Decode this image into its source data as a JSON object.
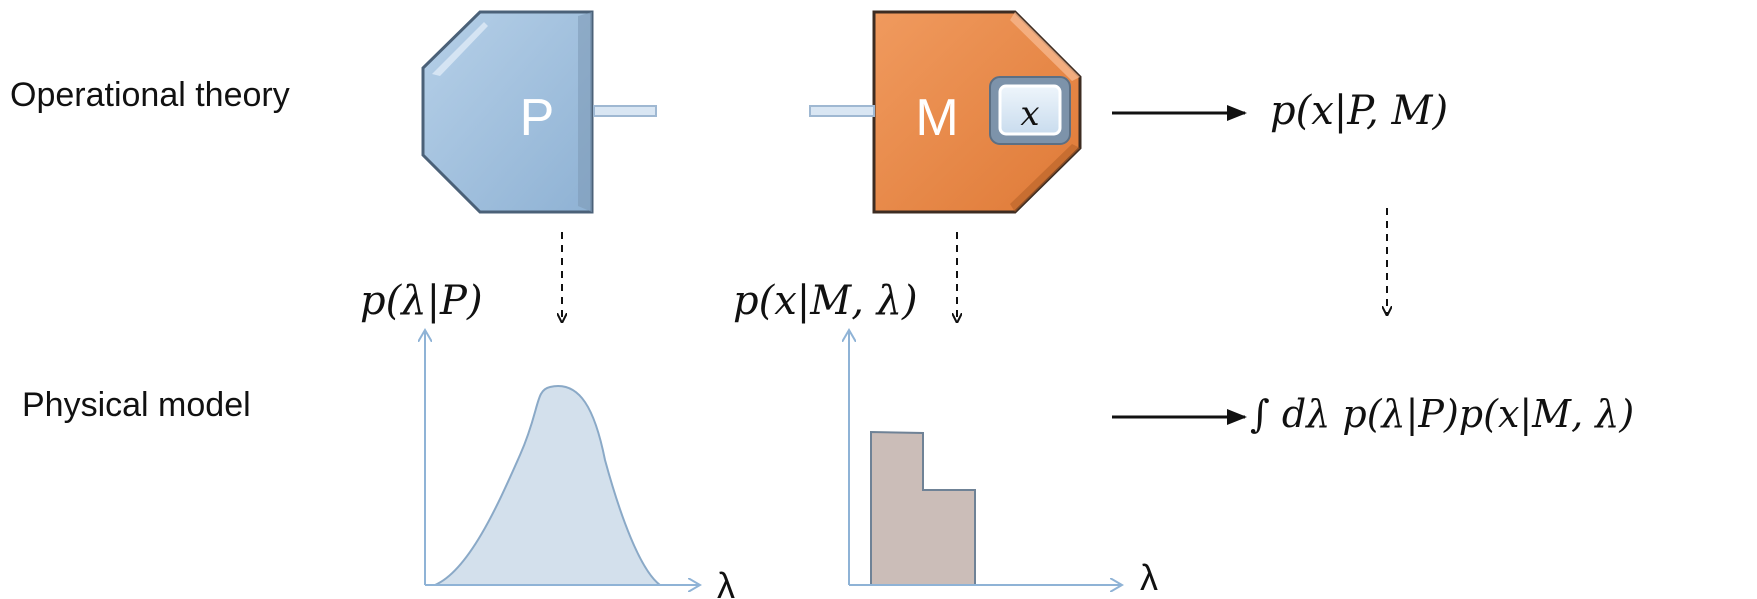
{
  "rows": {
    "operational": "Operational theory",
    "physical": "Physical model"
  },
  "devices": {
    "preparation": {
      "label": "P",
      "color": "#9dbfde"
    },
    "measurement": {
      "label": "M",
      "color": "#e98b4c",
      "outcome_label": "x"
    }
  },
  "formulas": {
    "operational": "p(x|P, M)",
    "prep_distribution": "p(λ|P)",
    "response_function": "p(x|M, λ)",
    "physical": "∫ dλ  p(λ|P)p(x|M, λ)"
  },
  "plots": {
    "prep": {
      "x_label": "λ",
      "fill": "#d3e0ec",
      "stroke": "#8aa9c7"
    },
    "response": {
      "x_label": "λ",
      "fill": "#cbbdb8",
      "stroke": "#6f8296"
    }
  },
  "colors": {
    "axis": "#8fb3d6",
    "arrow": "#111111"
  }
}
